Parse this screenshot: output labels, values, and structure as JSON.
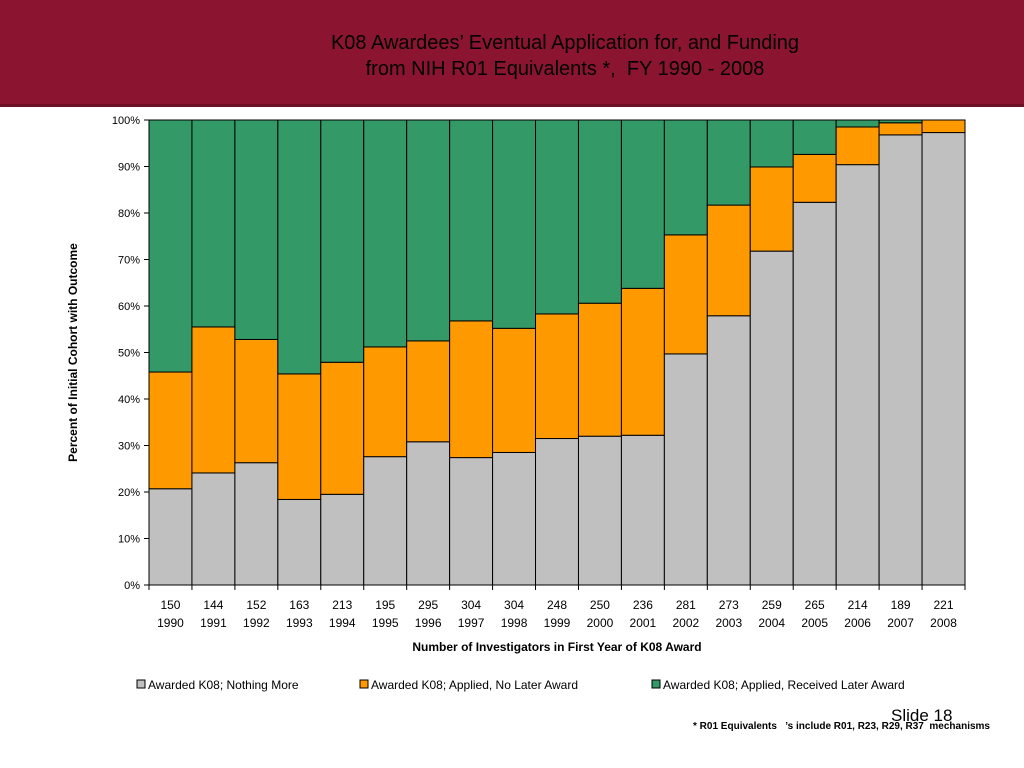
{
  "slide": {
    "title_line1": "K08 Awardees’ Eventual Application for, and Funding",
    "title_line2": "from NIH R01 Equivalents *,  FY 1990 - 2008",
    "slide_number": "Slide 18",
    "footnote": "* R01 Equivalents   ’s include R01, R23, R29, R37  mechanisms",
    "header_color": "#8b1530"
  },
  "chart_data": {
    "type": "bar",
    "stacked": "percent",
    "title": "",
    "xlabel": "Number of Investigators in First Year of K08 Award",
    "ylabel": "Percent of Initial Cohort with Outcome",
    "ylim": [
      0,
      100
    ],
    "yticks": [
      "0%",
      "10%",
      "20%",
      "30%",
      "40%",
      "50%",
      "60%",
      "70%",
      "80%",
      "90%",
      "100%"
    ],
    "categories": [
      "1990",
      "1991",
      "1992",
      "1993",
      "1994",
      "1995",
      "1996",
      "1997",
      "1998",
      "1999",
      "2000",
      "2001",
      "2002",
      "2003",
      "2004",
      "2005",
      "2006",
      "2007",
      "2008"
    ],
    "counts": [
      "150",
      "144",
      "152",
      "163",
      "213",
      "195",
      "295",
      "304",
      "304",
      "248",
      "250",
      "236",
      "281",
      "273",
      "259",
      "265",
      "214",
      "189",
      "221"
    ],
    "series": [
      {
        "name": "Awarded  K08; Nothing More",
        "color": "#c0c0c0",
        "values": [
          20.7,
          24.1,
          26.3,
          18.4,
          19.5,
          27.6,
          30.8,
          27.4,
          28.5,
          31.5,
          32.0,
          32.2,
          49.7,
          57.9,
          71.8,
          82.3,
          90.4,
          96.8,
          97.3
        ]
      },
      {
        "name": "Awarded  K08; Applied,  No Later Award",
        "color": "#ff9900",
        "values": [
          25.1,
          31.4,
          26.5,
          27.0,
          28.4,
          23.6,
          21.7,
          29.4,
          26.7,
          26.8,
          28.6,
          31.6,
          25.6,
          23.8,
          18.1,
          10.3,
          8.1,
          2.6,
          2.7
        ]
      },
      {
        "name": "Awarded  K08; Applied, Received Later Award",
        "color": "#339966",
        "values": [
          54.2,
          44.5,
          47.2,
          54.6,
          52.1,
          48.8,
          47.5,
          43.2,
          44.8,
          41.7,
          39.4,
          36.2,
          24.7,
          18.3,
          10.1,
          7.4,
          1.5,
          0.6,
          0.0
        ]
      }
    ],
    "grid": false,
    "legend": "bottom"
  }
}
